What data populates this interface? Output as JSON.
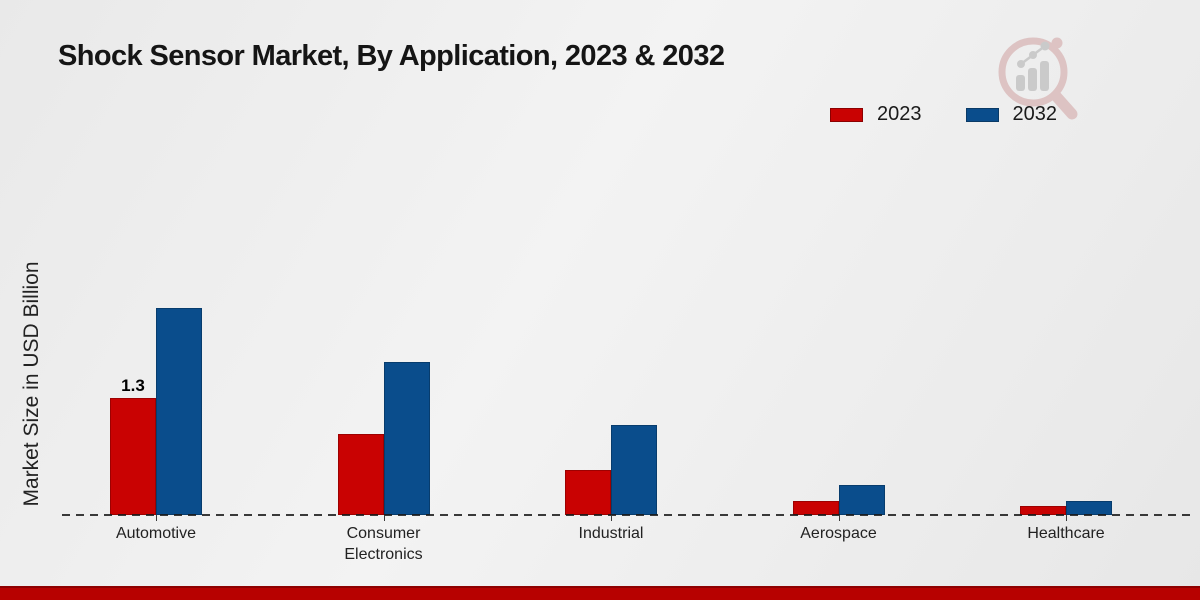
{
  "title": "Shock Sensor Market, By Application, 2023 & 2032",
  "ylabel": "Market Size in USD Billion",
  "legend": [
    {
      "label": "2023",
      "color": "#c90202",
      "border": "#8c0000"
    },
    {
      "label": "2032",
      "color": "#0a4d8c",
      "border": "#0a3a66"
    }
  ],
  "chart_data": {
    "type": "bar",
    "title": "Shock Sensor Market, By Application, 2023 & 2032",
    "xlabel": "",
    "ylabel": "Market Size in USD Billion",
    "categories": [
      "Automotive",
      "Consumer Electronics",
      "Industrial",
      "Aerospace",
      "Healthcare"
    ],
    "series": [
      {
        "name": "2023",
        "color": "#c90202",
        "values": [
          1.3,
          0.9,
          0.5,
          0.15,
          0.1
        ]
      },
      {
        "name": "2032",
        "color": "#0a4d8c",
        "values": [
          2.3,
          1.7,
          1.0,
          0.33,
          0.15
        ]
      }
    ],
    "bar_labels": [
      {
        "series": "2023",
        "category": "Automotive",
        "text": "1.3"
      }
    ],
    "ylim": [
      0,
      2.5
    ],
    "grid": false,
    "baseline_style": "dashed",
    "legend_position": "top-right"
  },
  "footer": {
    "bar_color": "#b70100"
  },
  "logo": {
    "name": "magnifier-bar-chart-logo",
    "ring_color": "#dcc0c0",
    "glyph_color": "#c8c8c8"
  }
}
